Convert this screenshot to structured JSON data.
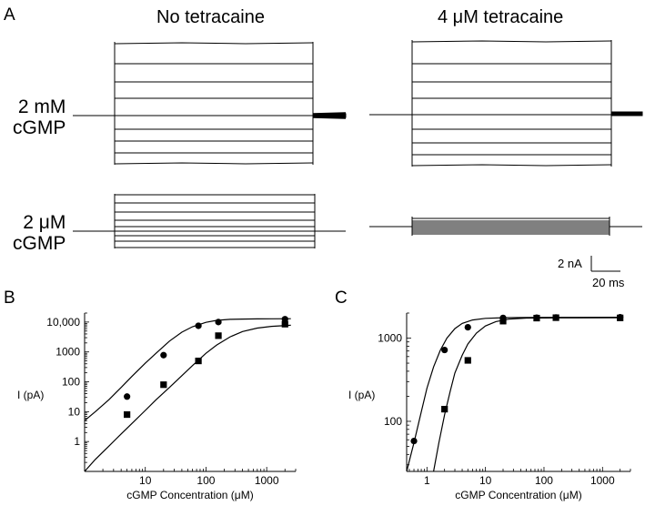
{
  "panel_a": {
    "letter": "A",
    "column_titles": [
      "No tetracaine",
      "4 μM tetracaine"
    ],
    "row_labels": [
      {
        "line1": "2 mM",
        "line2": "cGMP"
      },
      {
        "line1": "2 μM",
        "line2": "cGMP"
      }
    ],
    "scale_bar": {
      "current_label": "2 nA",
      "time_label": "20 ms"
    }
  },
  "chart_data": [
    {
      "type": "scatter",
      "panel": "B",
      "xlabel": "cGMP Concentration (μM)",
      "ylabel": "I (pA)",
      "x_scale": "log",
      "y_scale": "log",
      "xlim": [
        1,
        3000
      ],
      "ylim": [
        0.1,
        20000
      ],
      "x_ticks": [
        {
          "v": 10,
          "label": "10"
        },
        {
          "v": 100,
          "label": "100"
        },
        {
          "v": 1000,
          "label": "1000"
        }
      ],
      "y_ticks": [
        {
          "v": 1,
          "label": "1"
        },
        {
          "v": 10,
          "label": "10"
        },
        {
          "v": 100,
          "label": "100"
        },
        {
          "v": 1000,
          "label": "1000"
        },
        {
          "v": 10000,
          "label": "10,000"
        }
      ],
      "series": [
        {
          "marker": "circle",
          "x": [
            5,
            20,
            75,
            160,
            2000
          ],
          "y": [
            32,
            780,
            7500,
            10000,
            12500
          ],
          "fit_x": [
            1,
            1.5,
            2.5,
            4,
            6,
            10,
            15,
            25,
            40,
            60,
            100,
            150,
            250,
            400,
            700,
            1200,
            2500
          ],
          "fit_y": [
            5,
            10,
            25,
            65,
            150,
            420,
            900,
            2300,
            4600,
            7000,
            9800,
            11400,
            12300,
            12600,
            12800,
            12900,
            12950
          ]
        },
        {
          "marker": "square",
          "x": [
            5,
            20,
            75,
            160,
            2000
          ],
          "y": [
            8,
            80,
            500,
            3500,
            8500
          ],
          "fit_x": [
            1,
            1.5,
            2.5,
            4,
            6,
            10,
            15,
            25,
            40,
            60,
            100,
            150,
            250,
            400,
            700,
            1200,
            2500
          ],
          "fit_y": [
            0.1,
            0.25,
            0.7,
            1.8,
            4,
            11,
            25,
            65,
            160,
            350,
            900,
            1700,
            3200,
            4800,
            6300,
            7200,
            7800
          ]
        }
      ]
    },
    {
      "type": "scatter",
      "panel": "C",
      "xlabel": "cGMP Concentration (μM)",
      "ylabel": "I (pA)",
      "x_scale": "log",
      "y_scale": "log",
      "xlim": [
        0.45,
        3000
      ],
      "ylim": [
        25,
        2000
      ],
      "x_ticks": [
        {
          "v": 1,
          "label": "1"
        },
        {
          "v": 10,
          "label": "10"
        },
        {
          "v": 100,
          "label": "100"
        },
        {
          "v": 1000,
          "label": "1000"
        }
      ],
      "y_ticks": [
        {
          "v": 100,
          "label": "100"
        },
        {
          "v": 1000,
          "label": "1000"
        }
      ],
      "series": [
        {
          "marker": "circle",
          "x": [
            0.6,
            2,
            5,
            20,
            75,
            160,
            2000
          ],
          "y": [
            58,
            720,
            1350,
            1750,
            1760,
            1770,
            1780
          ],
          "fit_x": [
            0.45,
            0.6,
            0.8,
            1,
            1.3,
            1.7,
            2.2,
            3,
            4,
            6,
            10,
            20,
            50,
            200,
            2000
          ],
          "fit_y": [
            25,
            55,
            130,
            250,
            450,
            720,
            1000,
            1300,
            1500,
            1650,
            1730,
            1760,
            1770,
            1775,
            1780
          ]
        },
        {
          "marker": "square",
          "x": [
            2,
            5,
            20,
            75,
            160,
            2000
          ],
          "y": [
            140,
            540,
            1600,
            1740,
            1760,
            1750
          ],
          "fit_x": [
            1.3,
            1.6,
            2,
            2.5,
            3,
            4,
            5,
            7,
            10,
            15,
            25,
            50,
            200,
            2000
          ],
          "fit_y": [
            25,
            55,
            120,
            230,
            380,
            620,
            850,
            1150,
            1400,
            1580,
            1690,
            1740,
            1750,
            1755
          ]
        }
      ]
    }
  ]
}
